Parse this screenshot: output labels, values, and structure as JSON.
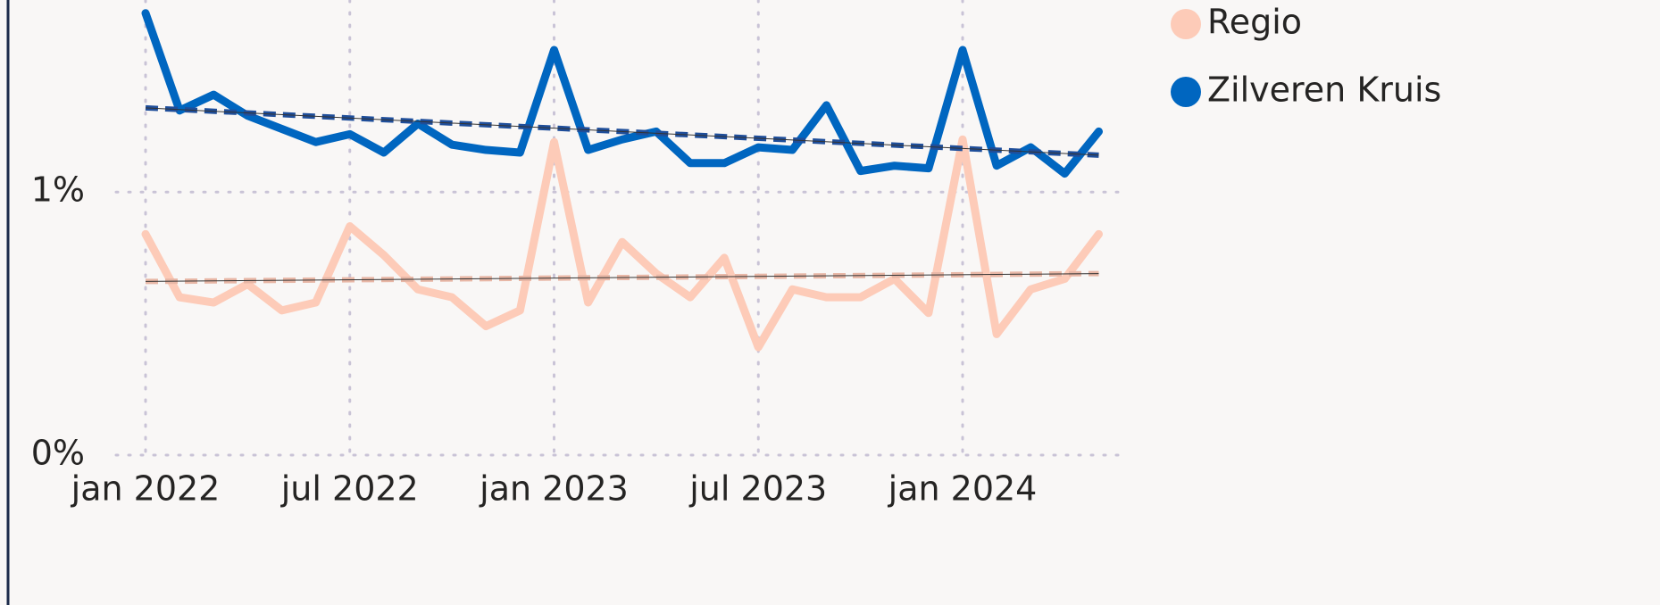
{
  "chart_data": {
    "type": "line",
    "categories": [
      "jan 2022",
      null,
      null,
      null,
      null,
      null,
      "jul 2022",
      null,
      null,
      null,
      null,
      null,
      "jan 2023",
      null,
      null,
      null,
      null,
      null,
      "jul 2023",
      null,
      null,
      null,
      null,
      null,
      "jan 2024",
      null,
      null,
      null,
      null
    ],
    "series": [
      {
        "name": "Regio",
        "color": "#fdcbb8",
        "trend_color": "#e8b7a6",
        "values": [
          0.84,
          0.6,
          0.58,
          0.65,
          0.55,
          0.58,
          0.87,
          0.76,
          0.63,
          0.6,
          0.49,
          0.55,
          1.19,
          0.58,
          0.81,
          0.69,
          0.6,
          0.75,
          0.41,
          0.63,
          0.6,
          0.6,
          0.67,
          0.54,
          1.2,
          0.46,
          0.63,
          0.67,
          0.84
        ],
        "trend": [
          0.66,
          0.69
        ]
      },
      {
        "name": "Zilveren Kruis",
        "color": "#0066c0",
        "trend_color": "#1f4e9a",
        "values": [
          1.68,
          1.31,
          1.37,
          1.29,
          1.24,
          1.19,
          1.22,
          1.15,
          1.26,
          1.18,
          1.16,
          1.15,
          1.54,
          1.16,
          1.2,
          1.23,
          1.11,
          1.11,
          1.17,
          1.16,
          1.33,
          1.08,
          1.1,
          1.09,
          1.54,
          1.1,
          1.17,
          1.07,
          1.23
        ],
        "trend": [
          1.32,
          1.14
        ]
      }
    ],
    "ylim": [
      0,
      1.73
    ],
    "yticks": [
      {
        "value": 0,
        "label": "0%"
      },
      {
        "value": 1,
        "label": "1%"
      }
    ],
    "grid": true,
    "legend": "top-right"
  }
}
